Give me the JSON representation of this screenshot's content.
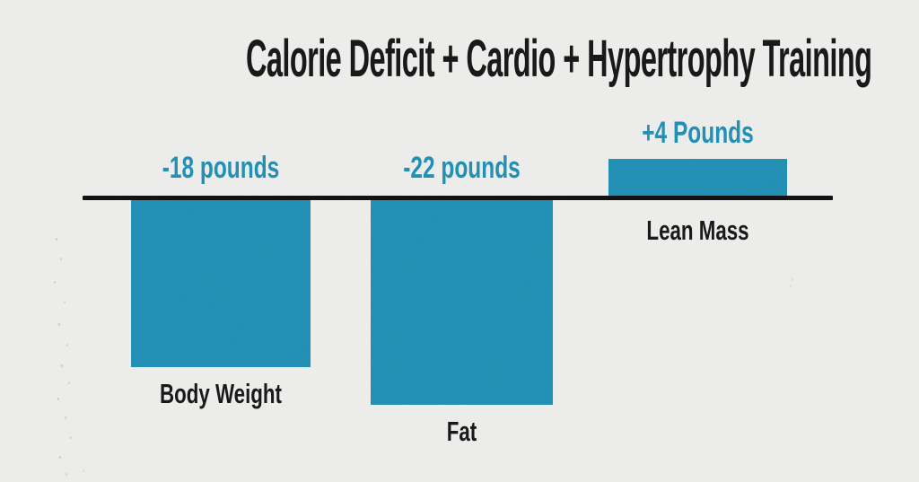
{
  "title": "Calorie Deficit + Cardio + Hypertrophy Training",
  "colors": {
    "background": "#eeeeec",
    "bar": "#1d8fb4",
    "value_label": "#1d8fb4",
    "category_label": "#141414",
    "axis": "#0d0d0d",
    "title": "#141414"
  },
  "chart_data": {
    "type": "bar",
    "title": "Calorie Deficit + Cardio + Hypertrophy Training",
    "categories": [
      "Body Weight",
      "Fat",
      "Lean Mass"
    ],
    "values": [
      -18,
      -22,
      4
    ],
    "value_labels": [
      "-18 pounds",
      "-22 pounds",
      "+4 Pounds"
    ],
    "unit": "pounds",
    "baseline": 0,
    "ylim": [
      -24,
      6
    ],
    "grid": false,
    "legend": "none",
    "orientation": "vertical",
    "annotations": []
  }
}
